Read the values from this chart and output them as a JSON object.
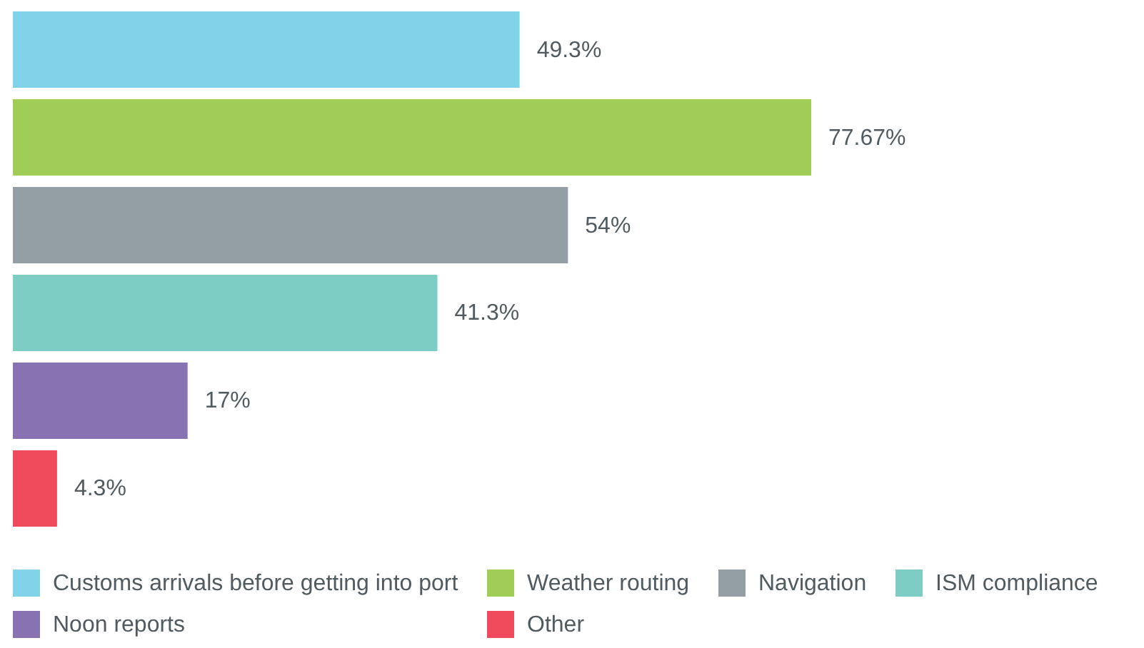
{
  "chart_data": {
    "type": "bar",
    "orientation": "horizontal",
    "stacked": true,
    "categories": [
      null,
      null,
      null,
      null,
      null,
      null
    ],
    "series": [
      {
        "name": "Customs arrivals before getting into port",
        "color": "#80d3e8",
        "values": [
          49.3,
          null,
          null,
          null,
          null,
          null
        ],
        "value_labels": [
          "49.3%",
          null,
          null,
          null,
          null,
          null
        ]
      },
      {
        "name": "Weather routing",
        "color": "#a0cd57",
        "values": [
          null,
          77.67,
          null,
          null,
          null,
          null
        ],
        "value_labels": [
          null,
          "77.67%",
          null,
          null,
          null,
          null
        ]
      },
      {
        "name": "Navigation",
        "color": "#949ea5",
        "values": [
          null,
          null,
          54,
          null,
          null,
          null
        ],
        "value_labels": [
          null,
          null,
          "54%",
          null,
          null,
          null
        ]
      },
      {
        "name": "ISM compliance",
        "color": "#7ecdc4",
        "values": [
          null,
          null,
          null,
          41.3,
          null,
          null
        ],
        "value_labels": [
          null,
          null,
          null,
          "41.3%",
          null,
          null
        ]
      },
      {
        "name": "Noon reports",
        "color": "#8872b2",
        "values": [
          null,
          null,
          null,
          null,
          17,
          null
        ],
        "value_labels": [
          null,
          null,
          null,
          null,
          "17%",
          null
        ]
      },
      {
        "name": "Other",
        "color": "#f04b5c",
        "values": [
          null,
          null,
          null,
          null,
          null,
          4.3
        ],
        "value_labels": [
          null,
          null,
          null,
          null,
          null,
          "4.3%"
        ]
      }
    ],
    "tick_labels": false,
    "legend": "bottom"
  }
}
